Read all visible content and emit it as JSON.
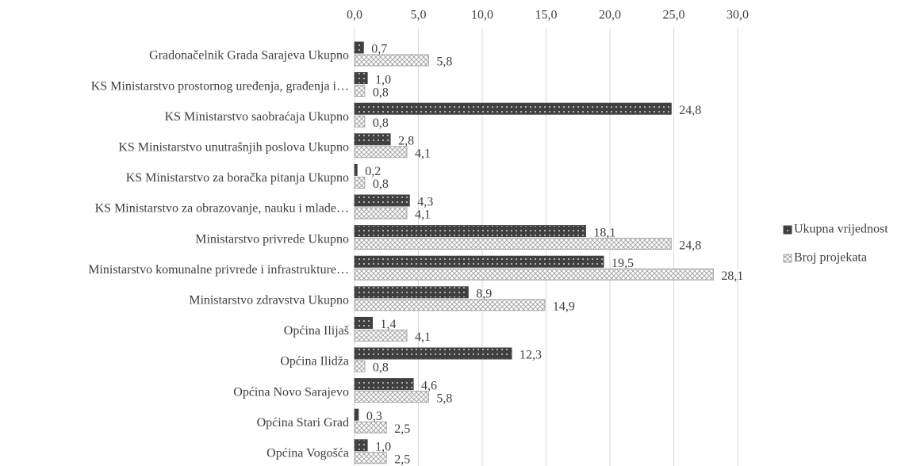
{
  "chart_data": {
    "type": "bar",
    "orientation": "horizontal",
    "categories": [
      "Gradonačelnik Grada Sarajeva Ukupno",
      "KS Ministarstvo prostornog uređenja, građenja i…",
      "KS Ministarstvo saobraćaja Ukupno",
      "KS Ministarstvo unutrašnjih poslova Ukupno",
      "KS Ministarstvo za boračka pitanja Ukupno",
      "KS Ministarstvo za obrazovanje, nauku i mlade…",
      "Ministarstvo privrede Ukupno",
      "Ministarstvo komunalne privrede i infrastrukture…",
      "Ministarstvo zdravstva Ukupno",
      "Općina Ilijaš",
      "Općina Ilidža",
      "Općina Novo Sarajevo",
      "Općina Stari Grad",
      "Općina Vogošća"
    ],
    "series": [
      {
        "name": "Ukupna vrijednost",
        "color": "#404040",
        "values": [
          0.7,
          1.0,
          24.8,
          2.8,
          0.2,
          4.3,
          18.1,
          19.5,
          8.9,
          1.4,
          12.3,
          4.6,
          0.3,
          1.0
        ],
        "value_labels": [
          "0,7",
          "1,0",
          "24,8",
          "2,8",
          "0,2",
          "4,3",
          "18,1",
          "19,5",
          "8,9",
          "1,4",
          "12,3",
          "4,6",
          "0,3",
          "1,0"
        ]
      },
      {
        "name": "Broj projekata",
        "color": "#a6a6a6",
        "values": [
          5.8,
          0.8,
          0.8,
          4.1,
          0.8,
          4.1,
          24.8,
          28.1,
          14.9,
          4.1,
          0.8,
          5.8,
          2.5,
          2.5
        ],
        "value_labels": [
          "5,8",
          "0,8",
          "0,8",
          "4,1",
          "0,8",
          "4,1",
          "24,8",
          "28,1",
          "14,9",
          "4,1",
          "0,8",
          "5,8",
          "2,5",
          "2,5"
        ]
      }
    ],
    "xlim": [
      0,
      30
    ],
    "xticks": [
      {
        "value": 0,
        "label": "0,0"
      },
      {
        "value": 5,
        "label": "5,0"
      },
      {
        "value": 10,
        "label": "10,0"
      },
      {
        "value": 15,
        "label": "15,0"
      },
      {
        "value": 20,
        "label": "20,0"
      },
      {
        "value": 25,
        "label": "25,0"
      },
      {
        "value": 30,
        "label": "30,0"
      }
    ],
    "grid": true,
    "legend": "right"
  }
}
